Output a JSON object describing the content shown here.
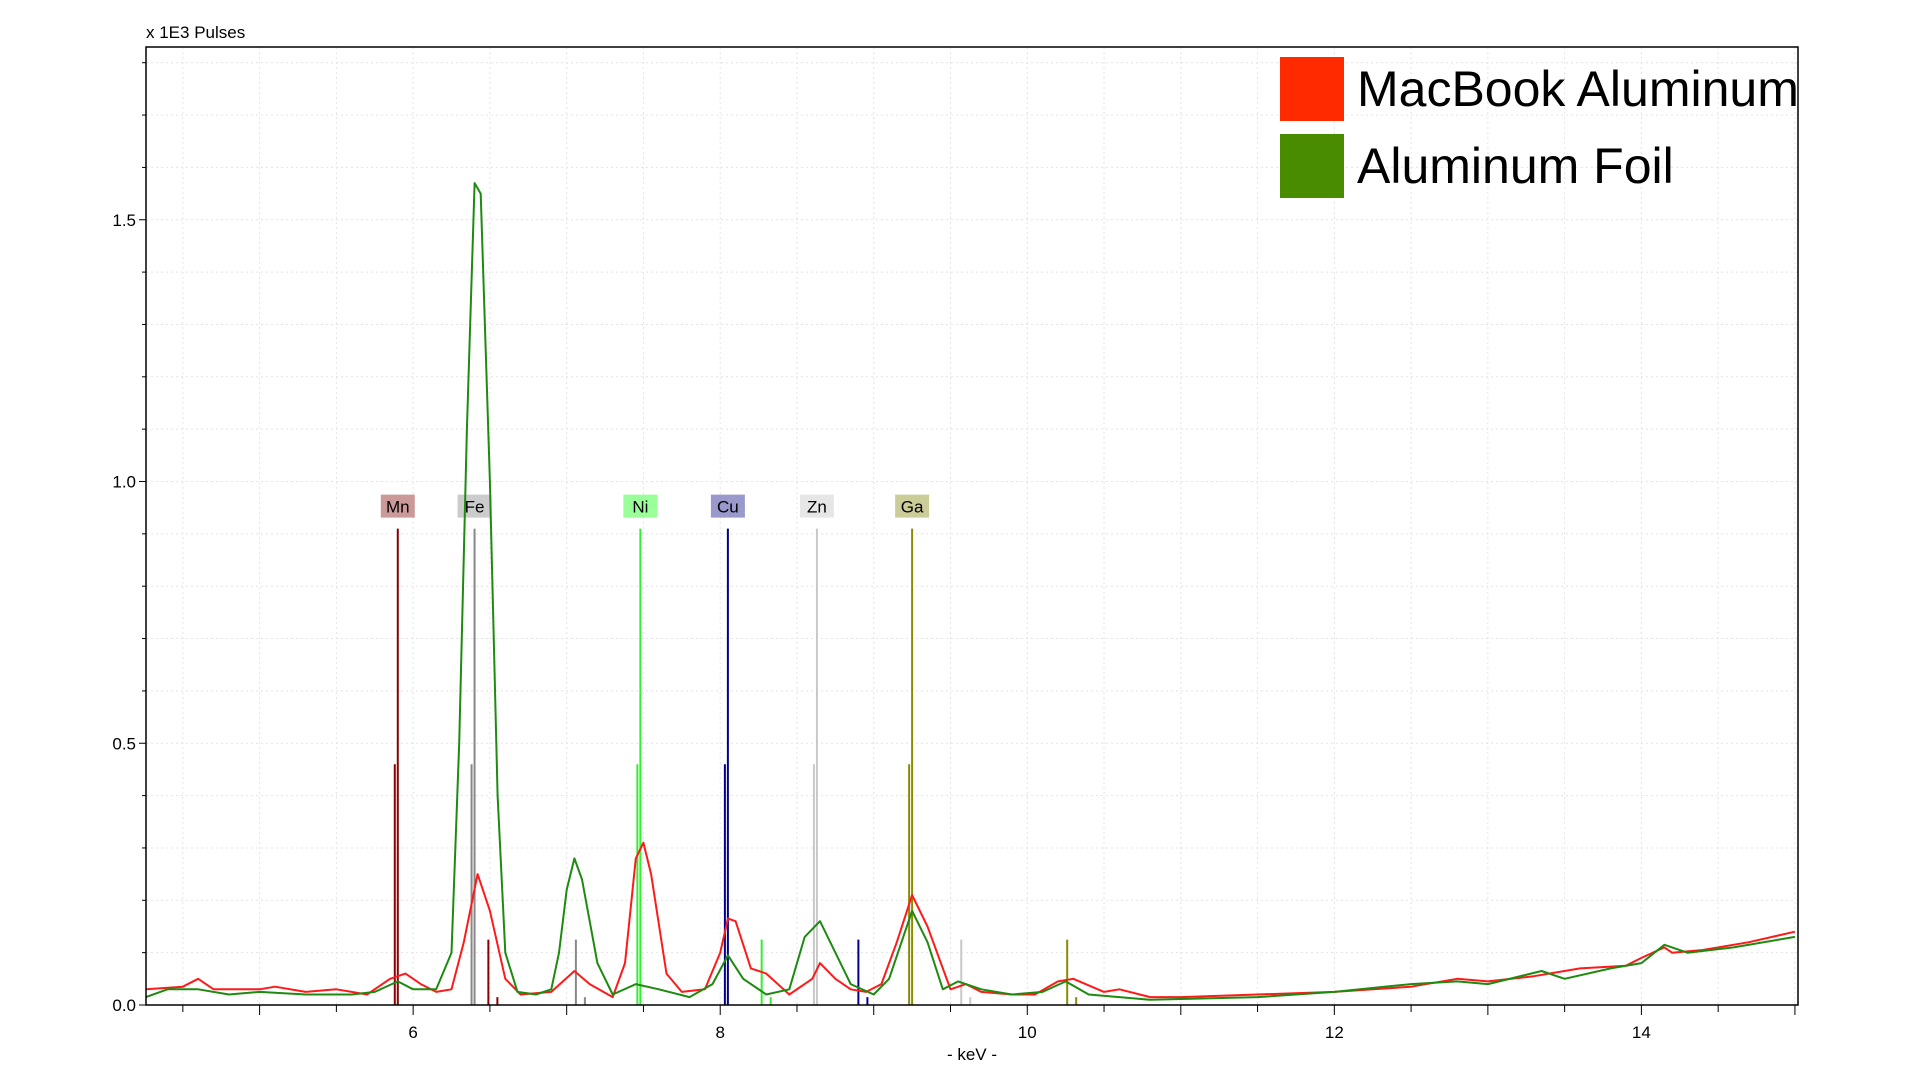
{
  "chart_data": {
    "type": "line",
    "title": "",
    "xlabel": "- keV -",
    "ylabel": "x 1E3 Pulses",
    "xlim": [
      4.26,
      15.02
    ],
    "ylim": [
      0,
      1.83
    ],
    "xticks": [
      6,
      8,
      10,
      12,
      14
    ],
    "xtick_labels": [
      "6",
      "8",
      "10",
      "12",
      "14"
    ],
    "yticks": [
      0,
      0.5,
      1.0,
      1.5
    ],
    "ytick_labels": [
      "0.0",
      "0.5",
      "1.0",
      "1.5"
    ],
    "grid": true,
    "legend_placement": "top-right",
    "series": [
      {
        "name": "MacBook Aluminum",
        "color": "#ff2a00",
        "x": [
          4.26,
          4.5,
          4.6,
          4.7,
          5.0,
          5.1,
          5.3,
          5.5,
          5.7,
          5.85,
          5.95,
          6.05,
          6.15,
          6.25,
          6.33,
          6.42,
          6.5,
          6.6,
          6.7,
          6.9,
          7.05,
          7.15,
          7.3,
          7.38,
          7.45,
          7.5,
          7.55,
          7.65,
          7.75,
          7.9,
          8.0,
          8.05,
          8.1,
          8.2,
          8.3,
          8.45,
          8.6,
          8.65,
          8.75,
          8.85,
          8.95,
          9.05,
          9.15,
          9.25,
          9.35,
          9.5,
          9.6,
          9.7,
          9.9,
          10.05,
          10.2,
          10.3,
          10.5,
          10.6,
          10.8,
          11.0,
          11.5,
          12.0,
          12.5,
          12.8,
          13.0,
          13.3,
          13.6,
          13.9,
          14.0,
          14.15,
          14.2,
          14.4,
          14.7,
          15.0
        ],
        "y": [
          0.03,
          0.035,
          0.05,
          0.03,
          0.03,
          0.035,
          0.025,
          0.03,
          0.02,
          0.05,
          0.06,
          0.04,
          0.025,
          0.03,
          0.12,
          0.25,
          0.18,
          0.05,
          0.02,
          0.025,
          0.065,
          0.04,
          0.015,
          0.08,
          0.28,
          0.31,
          0.25,
          0.06,
          0.025,
          0.03,
          0.1,
          0.165,
          0.16,
          0.07,
          0.06,
          0.02,
          0.05,
          0.08,
          0.05,
          0.03,
          0.025,
          0.04,
          0.12,
          0.21,
          0.15,
          0.03,
          0.04,
          0.025,
          0.02,
          0.02,
          0.045,
          0.05,
          0.025,
          0.03,
          0.015,
          0.015,
          0.02,
          0.025,
          0.035,
          0.05,
          0.045,
          0.055,
          0.07,
          0.075,
          0.09,
          0.11,
          0.1,
          0.105,
          0.12,
          0.14
        ]
      },
      {
        "name": "Aluminum Foil",
        "color": "#4a8c00",
        "x": [
          4.26,
          4.4,
          4.6,
          4.8,
          5.0,
          5.3,
          5.6,
          5.75,
          5.9,
          6.0,
          6.15,
          6.25,
          6.3,
          6.35,
          6.4,
          6.44,
          6.5,
          6.55,
          6.6,
          6.68,
          6.8,
          6.9,
          6.95,
          7.0,
          7.05,
          7.1,
          7.2,
          7.3,
          7.45,
          7.6,
          7.8,
          7.95,
          8.05,
          8.15,
          8.3,
          8.45,
          8.55,
          8.65,
          8.75,
          8.85,
          9.0,
          9.1,
          9.25,
          9.35,
          9.45,
          9.55,
          9.7,
          9.9,
          10.1,
          10.25,
          10.4,
          10.8,
          11.5,
          12.0,
          12.5,
          12.8,
          13.0,
          13.35,
          13.5,
          13.8,
          14.0,
          14.15,
          14.3,
          14.6,
          15.0
        ],
        "y": [
          0.015,
          0.03,
          0.03,
          0.02,
          0.025,
          0.02,
          0.02,
          0.025,
          0.045,
          0.03,
          0.03,
          0.1,
          0.5,
          1.1,
          1.57,
          1.55,
          1.0,
          0.4,
          0.1,
          0.025,
          0.02,
          0.03,
          0.1,
          0.22,
          0.28,
          0.24,
          0.08,
          0.02,
          0.04,
          0.03,
          0.015,
          0.04,
          0.095,
          0.05,
          0.02,
          0.03,
          0.13,
          0.16,
          0.1,
          0.04,
          0.02,
          0.05,
          0.18,
          0.12,
          0.03,
          0.045,
          0.03,
          0.02,
          0.025,
          0.045,
          0.02,
          0.01,
          0.015,
          0.025,
          0.04,
          0.045,
          0.04,
          0.065,
          0.05,
          0.07,
          0.08,
          0.115,
          0.1,
          0.11,
          0.13
        ]
      }
    ],
    "element_markers": [
      {
        "label": "Mn",
        "energy": 5.9,
        "line_color": "#8b0000",
        "label_bg": "#cc9999",
        "kbeta": 6.49
      },
      {
        "label": "Fe",
        "energy": 6.4,
        "line_color": "#888888",
        "label_bg": "#cccccc",
        "kbeta": 7.06
      },
      {
        "label": "Ni",
        "energy": 7.48,
        "line_color": "#33ee33",
        "label_bg": "#99ff99",
        "kbeta": 8.27
      },
      {
        "label": "Cu",
        "energy": 8.05,
        "line_color": "#00008b",
        "label_bg": "#9999cc",
        "kbeta": 8.9
      },
      {
        "label": "Zn",
        "energy": 8.63,
        "line_color": "#c8c8c8",
        "label_bg": "#e6e6e6",
        "kbeta": 9.57
      },
      {
        "label": "Ga",
        "energy": 9.25,
        "line_color": "#8b8b00",
        "label_bg": "#cccc99",
        "kbeta": 10.26
      }
    ]
  }
}
